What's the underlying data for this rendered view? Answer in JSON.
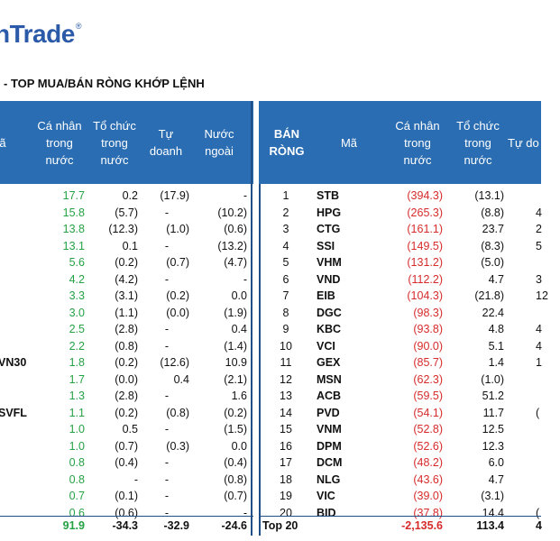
{
  "header": {
    "logo_text": "nTrade",
    "logo_mark": "®",
    "title": "- TOP MUA/BÁN RÒNG KHỚP LỆNH"
  },
  "left": {
    "columns": {
      "code_partial": "ã",
      "ca_nhan": [
        "Cá nhân",
        "trong",
        "nước"
      ],
      "to_chuc": [
        "Tổ chức",
        "trong",
        "nước"
      ],
      "tu_doanh": [
        "Tự",
        "doanh"
      ],
      "nuoc_ngoai": [
        "Nước",
        "ngoài"
      ]
    },
    "rows": [
      {
        "code": "",
        "ca_nhan": "17.7",
        "to_chuc": "0.2",
        "tu_doanh": "(17.9)",
        "nuoc_ngoai": "-"
      },
      {
        "code": "",
        "ca_nhan": "15.8",
        "to_chuc": "(5.7)",
        "tu_doanh": "-",
        "nuoc_ngoai": "(10.2)"
      },
      {
        "code": "",
        "ca_nhan": "13.8",
        "to_chuc": "(12.3)",
        "tu_doanh": "(1.0)",
        "nuoc_ngoai": "(0.6)"
      },
      {
        "code": "",
        "ca_nhan": "13.1",
        "to_chuc": "0.1",
        "tu_doanh": "-",
        "nuoc_ngoai": "(13.2)"
      },
      {
        "code": "",
        "ca_nhan": "5.6",
        "to_chuc": "(0.2)",
        "tu_doanh": "(0.7)",
        "nuoc_ngoai": "(4.7)"
      },
      {
        "code": "",
        "ca_nhan": "4.2",
        "to_chuc": "(4.2)",
        "tu_doanh": "-",
        "nuoc_ngoai": "-"
      },
      {
        "code": "",
        "ca_nhan": "3.3",
        "to_chuc": "(3.1)",
        "tu_doanh": "(0.2)",
        "nuoc_ngoai": "0.0"
      },
      {
        "code": "",
        "ca_nhan": "3.0",
        "to_chuc": "(1.1)",
        "tu_doanh": "(0.0)",
        "nuoc_ngoai": "(1.9)"
      },
      {
        "code": "",
        "ca_nhan": "2.5",
        "to_chuc": "(2.8)",
        "tu_doanh": "-",
        "nuoc_ngoai": "0.4"
      },
      {
        "code": "",
        "ca_nhan": "2.2",
        "to_chuc": "(0.8)",
        "tu_doanh": "-",
        "nuoc_ngoai": "(1.4)"
      },
      {
        "code": "VN30",
        "ca_nhan": "1.8",
        "to_chuc": "(0.2)",
        "tu_doanh": "(12.6)",
        "nuoc_ngoai": "10.9"
      },
      {
        "code": "",
        "ca_nhan": "1.7",
        "to_chuc": "(0.0)",
        "tu_doanh": "0.4",
        "nuoc_ngoai": "(2.1)"
      },
      {
        "code": "",
        "ca_nhan": "1.3",
        "to_chuc": "(2.8)",
        "tu_doanh": "-",
        "nuoc_ngoai": "1.6"
      },
      {
        "code": "SVFL",
        "ca_nhan": "1.1",
        "to_chuc": "(0.2)",
        "tu_doanh": "(0.8)",
        "nuoc_ngoai": "(0.2)"
      },
      {
        "code": "",
        "ca_nhan": "1.0",
        "to_chuc": "0.5",
        "tu_doanh": "-",
        "nuoc_ngoai": "(1.5)"
      },
      {
        "code": "",
        "ca_nhan": "1.0",
        "to_chuc": "(0.7)",
        "tu_doanh": "(0.3)",
        "nuoc_ngoai": "0.0"
      },
      {
        "code": "",
        "ca_nhan": "0.8",
        "to_chuc": "(0.4)",
        "tu_doanh": "-",
        "nuoc_ngoai": "(0.4)"
      },
      {
        "code": "",
        "ca_nhan": "0.8",
        "to_chuc": "-",
        "tu_doanh": "-",
        "nuoc_ngoai": "(0.8)"
      },
      {
        "code": "",
        "ca_nhan": "0.7",
        "to_chuc": "(0.1)",
        "tu_doanh": "-",
        "nuoc_ngoai": "(0.7)"
      },
      {
        "code": "",
        "ca_nhan": "0.6",
        "to_chuc": "(0.6)",
        "tu_doanh": "-",
        "nuoc_ngoai": "-"
      }
    ],
    "total": {
      "ca_nhan": "91.9",
      "to_chuc": "-34.3",
      "tu_doanh": "-32.9",
      "nuoc_ngoai": "-24.6"
    }
  },
  "right": {
    "columns": {
      "ban_rong": [
        "BÁN",
        "RÒNG"
      ],
      "ma": "Mã",
      "ca_nhan": [
        "Cá nhân",
        "trong",
        "nước"
      ],
      "to_chuc": [
        "Tổ chức",
        "trong",
        "nước"
      ],
      "tu_doanh_partial": "Tự do"
    },
    "rows": [
      {
        "rank": "1",
        "code": "STB",
        "ca_nhan": "(394.3)",
        "to_chuc": "(13.1)",
        "tu_doanh": ""
      },
      {
        "rank": "2",
        "code": "HPG",
        "ca_nhan": "(265.3)",
        "to_chuc": "(8.8)",
        "tu_doanh": "4"
      },
      {
        "rank": "3",
        "code": "CTG",
        "ca_nhan": "(161.1)",
        "to_chuc": "23.7",
        "tu_doanh": "2"
      },
      {
        "rank": "4",
        "code": "SSI",
        "ca_nhan": "(149.5)",
        "to_chuc": "(8.3)",
        "tu_doanh": "5"
      },
      {
        "rank": "5",
        "code": "VHM",
        "ca_nhan": "(131.2)",
        "to_chuc": "(5.0)",
        "tu_doanh": ""
      },
      {
        "rank": "6",
        "code": "VND",
        "ca_nhan": "(112.2)",
        "to_chuc": "4.7",
        "tu_doanh": "3"
      },
      {
        "rank": "7",
        "code": "EIB",
        "ca_nhan": "(104.3)",
        "to_chuc": "(21.8)",
        "tu_doanh": "12"
      },
      {
        "rank": "8",
        "code": "DGC",
        "ca_nhan": "(98.3)",
        "to_chuc": "22.4",
        "tu_doanh": ""
      },
      {
        "rank": "9",
        "code": "KBC",
        "ca_nhan": "(93.8)",
        "to_chuc": "4.8",
        "tu_doanh": "4"
      },
      {
        "rank": "10",
        "code": "VCI",
        "ca_nhan": "(90.0)",
        "to_chuc": "5.1",
        "tu_doanh": "4"
      },
      {
        "rank": "11",
        "code": "GEX",
        "ca_nhan": "(85.7)",
        "to_chuc": "1.4",
        "tu_doanh": "1"
      },
      {
        "rank": "12",
        "code": "MSN",
        "ca_nhan": "(62.3)",
        "to_chuc": "(1.0)",
        "tu_doanh": ""
      },
      {
        "rank": "13",
        "code": "ACB",
        "ca_nhan": "(59.5)",
        "to_chuc": "51.2",
        "tu_doanh": ""
      },
      {
        "rank": "14",
        "code": "PVD",
        "ca_nhan": "(54.1)",
        "to_chuc": "11.7",
        "tu_doanh": "("
      },
      {
        "rank": "15",
        "code": "VNM",
        "ca_nhan": "(52.8)",
        "to_chuc": "12.5",
        "tu_doanh": ""
      },
      {
        "rank": "16",
        "code": "DPM",
        "ca_nhan": "(52.6)",
        "to_chuc": "12.3",
        "tu_doanh": ""
      },
      {
        "rank": "17",
        "code": "DCM",
        "ca_nhan": "(48.2)",
        "to_chuc": "6.0",
        "tu_doanh": ""
      },
      {
        "rank": "18",
        "code": "NLG",
        "ca_nhan": "(43.6)",
        "to_chuc": "4.7",
        "tu_doanh": ""
      },
      {
        "rank": "19",
        "code": "VIC",
        "ca_nhan": "(39.0)",
        "to_chuc": "(3.1)",
        "tu_doanh": ""
      },
      {
        "rank": "20",
        "code": "BID",
        "ca_nhan": "(37.8)",
        "to_chuc": "14.4",
        "tu_doanh": "("
      }
    ],
    "total": {
      "label": "Top 20",
      "ca_nhan": "-2,135.6",
      "to_chuc": "113.4",
      "tu_doanh": "4"
    }
  },
  "colors": {
    "header_blue": "#2a6db2",
    "positive_green": "#25a244",
    "negative_red": "#d62b2b",
    "logo_blue": "#2a5aa8"
  }
}
